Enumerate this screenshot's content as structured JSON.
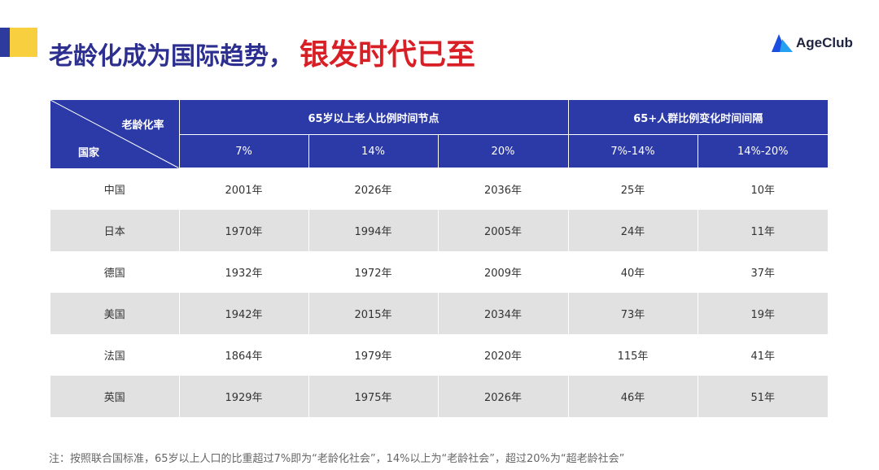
{
  "title": {
    "part1": "老龄化成为国际趋势，",
    "part2": "银发时代已至"
  },
  "logo": {
    "text": "AgeClub",
    "icon": "triangle-logo-icon"
  },
  "table": {
    "corner_top": "老龄化率",
    "corner_bottom": "国家",
    "group1": "65岁以上老人比例时间节点",
    "group2": "65+人群比例变化时间间隔",
    "sub_headers": [
      "7%",
      "14%",
      "20%",
      "7%-14%",
      "14%-20%"
    ],
    "rows": [
      [
        "中国",
        "2001年",
        "2026年",
        "2036年",
        "25年",
        "10年"
      ],
      [
        "日本",
        "1970年",
        "1994年",
        "2005年",
        "24年",
        "11年"
      ],
      [
        "德国",
        "1932年",
        "1972年",
        "2009年",
        "40年",
        "37年"
      ],
      [
        "美国",
        "1942年",
        "2015年",
        "2034年",
        "73年",
        "19年"
      ],
      [
        "法国",
        "1864年",
        "1979年",
        "2020年",
        "115年",
        "41年"
      ],
      [
        "英国",
        "1929年",
        "1975年",
        "2026年",
        "46年",
        "51年"
      ]
    ]
  },
  "note": "注：按照联合国标准，65岁以上人口的比重超过7%即为“老龄化社会”，14%以上为“老龄社会”，超过20%为“超老龄社会”",
  "colors": {
    "header_bg": "#2c3aa8",
    "title_blue": "#2c2f8f",
    "title_red": "#d81f26",
    "row_alt": "#e1e1e1"
  }
}
